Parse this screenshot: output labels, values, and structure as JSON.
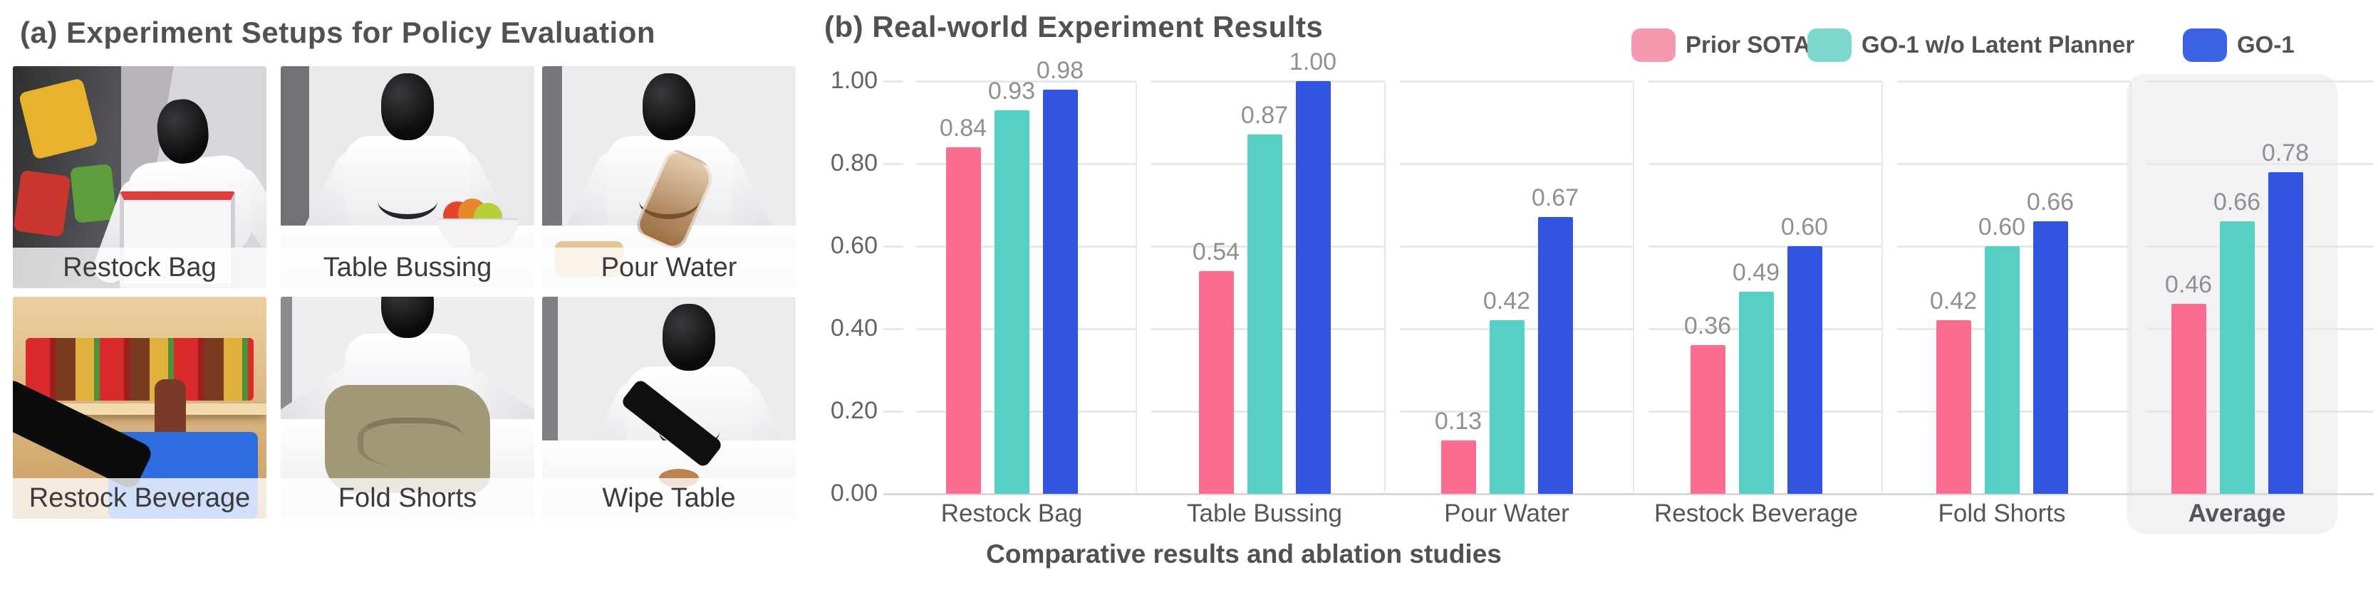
{
  "panel_a": {
    "title": "(a) Experiment Setups for Policy Evaluation",
    "setups": [
      "Restock Bag",
      "Table Bussing",
      "Pour Water",
      "Restock Beverage",
      "Fold Shorts",
      "Wipe Table"
    ]
  },
  "panel_b": {
    "title": "(b) Real-world Experiment Results",
    "caption": "Comparative results and ablation studies",
    "legend": [
      {
        "label": "Prior SOTA",
        "swatch_color": "#f898b0"
      },
      {
        "label": "GO-1 w/o Latent Planner",
        "swatch_color": "#7cd8cd"
      },
      {
        "label": "GO-1",
        "swatch_color": "#3b63e3"
      }
    ],
    "highlight_color": "#f2f2f4"
  },
  "chart_data": {
    "type": "bar",
    "title": "(b) Real-world Experiment Results",
    "categories": [
      "Restock Bag",
      "Table Bussing",
      "Pour Water",
      "Restock Beverage",
      "Fold Shorts",
      "Average"
    ],
    "series": [
      {
        "name": "Prior SOTA",
        "color": "#fb6c8f",
        "values": [
          0.84,
          0.54,
          0.13,
          0.36,
          0.42,
          0.46
        ]
      },
      {
        "name": "GO-1 w/o Latent Planner",
        "color": "#56cfc4",
        "values": [
          0.93,
          0.87,
          0.42,
          0.49,
          0.6,
          0.66
        ]
      },
      {
        "name": "GO-1",
        "color": "#3155de",
        "values": [
          0.98,
          1.0,
          0.67,
          0.6,
          0.66,
          0.78
        ]
      }
    ],
    "ylim": [
      0,
      1.0
    ],
    "yticks": [
      "0.00",
      "0.20",
      "0.40",
      "0.60",
      "0.80",
      "1.00"
    ],
    "grid": "horizontal",
    "legend_position": "top-right",
    "value_labels": true,
    "highlight_category": "Average",
    "caption": "Comparative results and ablation studies"
  }
}
